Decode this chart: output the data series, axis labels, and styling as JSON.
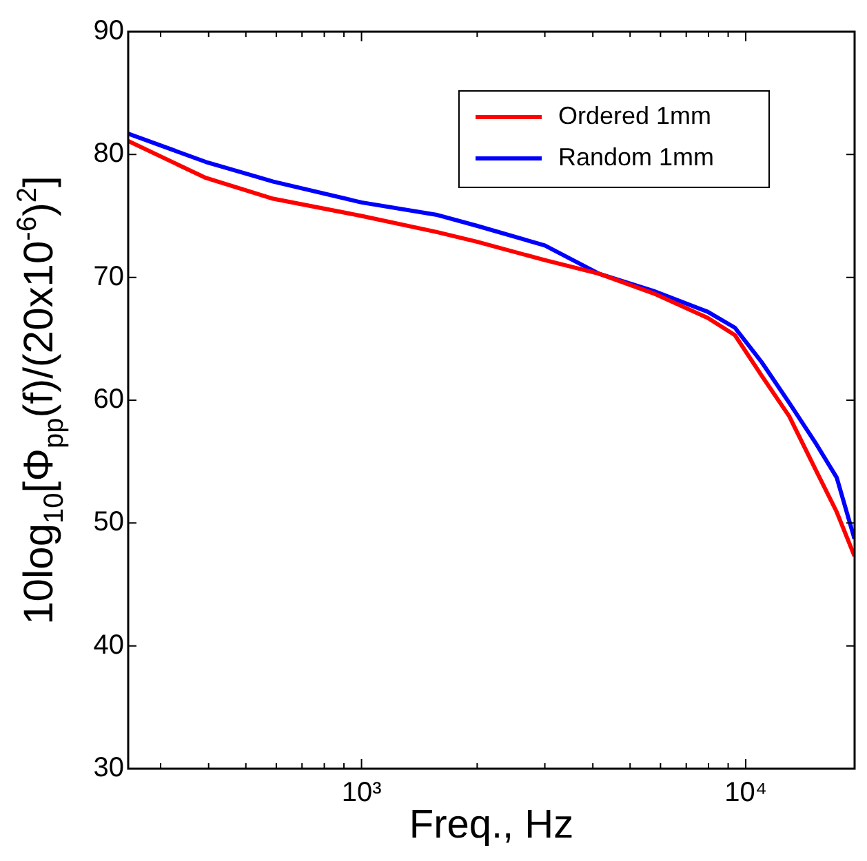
{
  "chart_data": {
    "type": "line",
    "xlabel": "Freq., Hz",
    "ylabel": "10log$_{10}$[Φ$_{pp}$(f)/(20x10$^{-6}$)$^{2}$]",
    "log": "x",
    "xlim": [
      247,
      19200
    ],
    "ylim": [
      30,
      90
    ],
    "xticks": [
      {
        "value": 300,
        "label": null
      },
      {
        "value": 400,
        "label": null
      },
      {
        "value": 500,
        "label": null
      },
      {
        "value": 600,
        "label": null
      },
      {
        "value": 700,
        "label": null
      },
      {
        "value": 800,
        "label": null
      },
      {
        "value": 900,
        "label": null
      },
      {
        "value": 1000,
        "label": "10³"
      },
      {
        "value": 2000,
        "label": null
      },
      {
        "value": 3000,
        "label": null
      },
      {
        "value": 4000,
        "label": null
      },
      {
        "value": 5000,
        "label": null
      },
      {
        "value": 6000,
        "label": null
      },
      {
        "value": 7000,
        "label": null
      },
      {
        "value": 8000,
        "label": null
      },
      {
        "value": 9000,
        "label": null
      },
      {
        "value": 10000,
        "label": "10⁴"
      }
    ],
    "yticks": [
      30,
      40,
      50,
      60,
      70,
      80,
      90
    ],
    "grid": false,
    "legend": "top right",
    "marker": "none",
    "line_style": "solid",
    "x": [
      247,
      393,
      589,
      1000,
      1563,
      1995,
      3000,
      4150,
      5750,
      7960,
      9370,
      11000,
      12970,
      15280,
      17250,
      19190
    ],
    "series": [
      {
        "name": "Ordered 1mm",
        "color": "#ff0000",
        "values": [
          81.1,
          78.1,
          76.4,
          75,
          73.7,
          72.9,
          71.4,
          70.3,
          68.7,
          66.7,
          65.3,
          62,
          58.7,
          54.2,
          50.9,
          47.3
        ]
      },
      {
        "name": "Random 1mm",
        "color": "#0000ff",
        "values": [
          81.7,
          79.4,
          77.8,
          76.1,
          75.1,
          74.2,
          72.6,
          70.3,
          68.9,
          67.2,
          65.9,
          63.1,
          59.8,
          56.4,
          53.7,
          48.7
        ]
      }
    ]
  }
}
